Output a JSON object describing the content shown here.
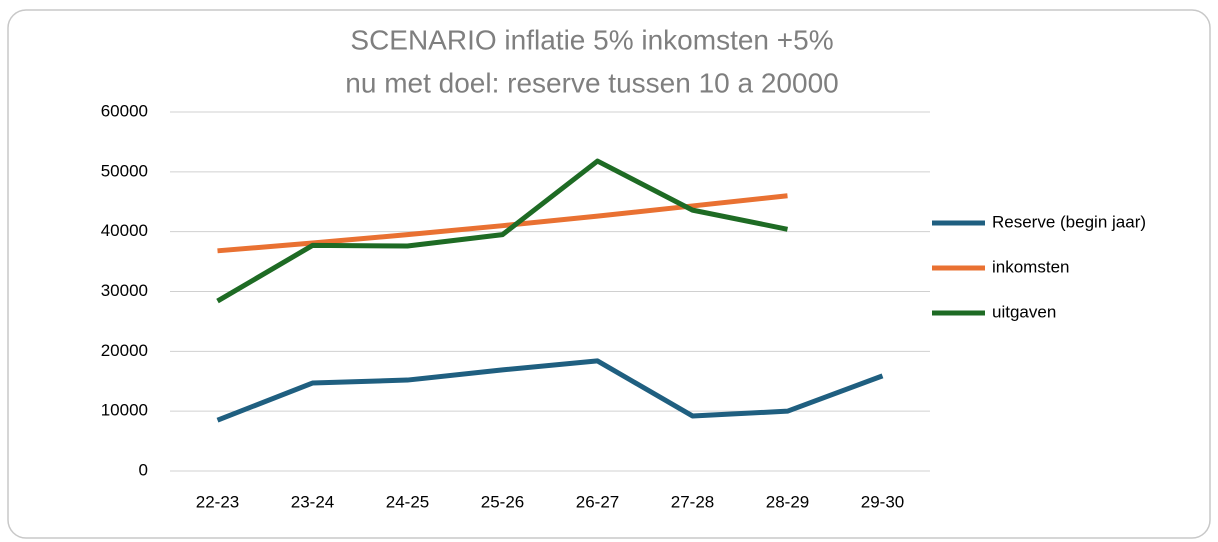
{
  "chart_data": {
    "type": "line",
    "title": "SCENARIO inflatie 5% inkomsten +5%",
    "subtitle": "nu met doel: reserve tussen 10 a 20000",
    "categories": [
      "22-23",
      "23-24",
      "24-25",
      "25-26",
      "26-27",
      "27-28",
      "28-29",
      "29-30"
    ],
    "series": [
      {
        "name": "Reserve (begin jaar)",
        "color": "#1f5f80",
        "values": [
          8500,
          14700,
          15200,
          16900,
          18400,
          9200,
          10000,
          15900
        ]
      },
      {
        "name": "inkomsten",
        "color": "#e97132",
        "values": [
          36800,
          38100,
          39500,
          41000,
          42600,
          44300,
          46000,
          null
        ]
      },
      {
        "name": "uitgaven",
        "color": "#1e6b24",
        "values": [
          28400,
          37700,
          37600,
          39500,
          51800,
          43600,
          40400,
          null
        ]
      }
    ],
    "ylim": [
      0,
      60000
    ],
    "yticks": [
      0,
      10000,
      20000,
      30000,
      40000,
      50000,
      60000
    ],
    "grid": true,
    "legend": "right"
  }
}
